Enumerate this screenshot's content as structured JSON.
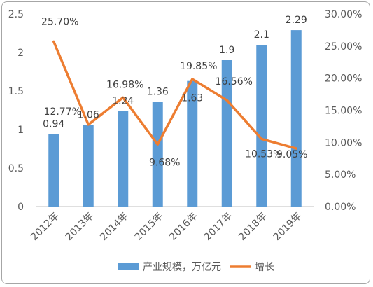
{
  "chart_data": {
    "type": "bar+line",
    "categories": [
      "2012年",
      "2013年",
      "2014年",
      "2015年",
      "2016年",
      "2017年",
      "2018年",
      "2019年"
    ],
    "series": [
      {
        "name": "产业规模，万亿元",
        "type": "bar",
        "axis": "left",
        "color": "#5b9bd5",
        "values": [
          0.94,
          1.06,
          1.24,
          1.36,
          1.63,
          1.9,
          2.1,
          2.29
        ],
        "labels": [
          "0.94",
          "1.06",
          "1.24",
          "1.36",
          "1.63",
          "1.9",
          "2.1",
          "2.29"
        ]
      },
      {
        "name": "增长",
        "type": "line",
        "axis": "right",
        "color": "#ed7d31",
        "values": [
          25.7,
          12.77,
          16.98,
          9.68,
          19.85,
          16.56,
          10.53,
          9.05
        ],
        "labels": [
          "25.70%",
          "12.77%",
          "16.98%",
          "9.68%",
          "19.85%",
          "16.56%",
          "10.53%",
          "9.05%"
        ]
      }
    ],
    "y_left": {
      "ylim": [
        0,
        2.5
      ],
      "ticks": [
        "0",
        "0.5",
        "1",
        "1.5",
        "2",
        "2.5"
      ]
    },
    "y_right": {
      "ylim": [
        0,
        30
      ],
      "ticks": [
        "0.00%",
        "5.00%",
        "10.00%",
        "15.00%",
        "20.00%",
        "25.00%",
        "30.00%"
      ]
    },
    "grid": false,
    "legend": "bottom"
  }
}
